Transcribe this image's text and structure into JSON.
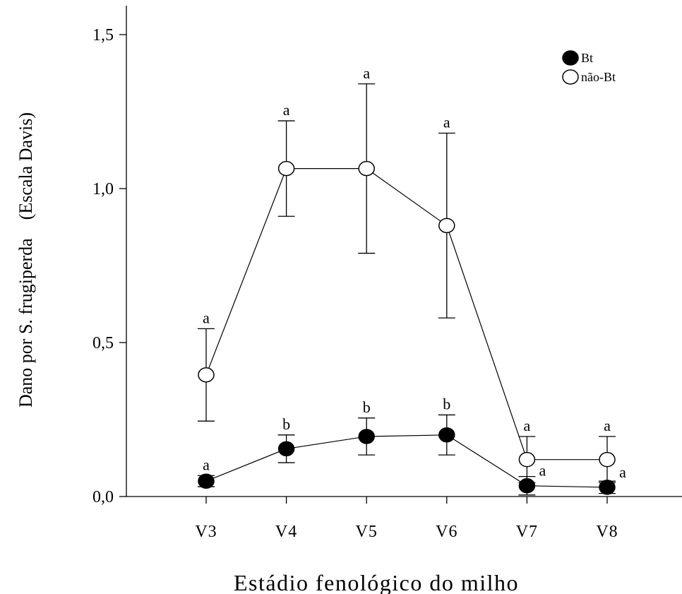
{
  "chart_data": {
    "type": "line",
    "xlabel": "Estádio fenológico do milho",
    "ylabel": "Dano por S. frugiperda    (Escala Davis)",
    "categories": [
      "V3",
      "V4",
      "V5",
      "V6",
      "V7",
      "V8"
    ],
    "ylim": [
      0,
      1.5
    ],
    "yticks": [
      0.0,
      0.5,
      1.0,
      1.5
    ],
    "ytick_labels": [
      "0,0",
      "0,5",
      "1,0",
      "1,5"
    ],
    "grid": false,
    "legend_position": "top-right",
    "series": [
      {
        "name": "Bt",
        "marker": "filled-circle",
        "color": "#000000",
        "values": [
          0.05,
          0.155,
          0.195,
          0.2,
          0.035,
          0.03
        ],
        "error": [
          0.018,
          0.045,
          0.06,
          0.065,
          0.03,
          0.02
        ],
        "labels": [
          "a",
          "b",
          "b",
          "b",
          "a",
          "a"
        ]
      },
      {
        "name": "não-Bt",
        "marker": "open-circle",
        "color": "#ffffff",
        "values": [
          0.395,
          1.065,
          1.065,
          0.88,
          0.12,
          0.12
        ],
        "error": [
          0.15,
          0.155,
          0.275,
          0.3,
          0.075,
          0.075
        ],
        "labels": [
          "a",
          "a",
          "a",
          "a",
          "a",
          "a"
        ]
      }
    ]
  }
}
